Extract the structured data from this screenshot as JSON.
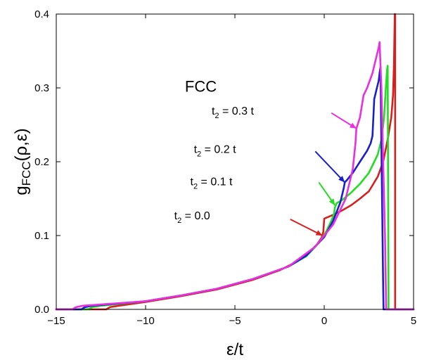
{
  "chart_data": {
    "type": "line",
    "title": "",
    "panel_label": "FCC",
    "xlabel": "ε/t",
    "ylabel": {
      "main": "g",
      "sub": "FCC",
      "args": "(ρ,ε)"
    },
    "xlim": [
      -15,
      5
    ],
    "ylim": [
      0,
      0.4
    ],
    "xticks": [
      -15,
      -10,
      -5,
      0,
      5
    ],
    "yticks": [
      0.0,
      0.1,
      0.2,
      0.3,
      0.4
    ],
    "xtick_labels": [
      "−15",
      "−10",
      "−5",
      "0",
      "5"
    ],
    "ytick_labels": [
      "0.0",
      "0.1",
      "0.2",
      "0.3",
      "0.4"
    ],
    "grid": false,
    "legend": "inline-annotations",
    "series": [
      {
        "name": "t2 = 0.0",
        "color": "#d62020",
        "x": [
          -15,
          -12.2,
          -12.0,
          -11.5,
          -10,
          -8,
          -6,
          -4,
          -2.5,
          -1.5,
          -0.8,
          -0.4,
          -0.15,
          -0.05,
          0.0,
          0.5,
          1.0,
          1.5,
          2.0,
          2.5,
          3.0,
          3.3,
          3.55,
          3.75,
          3.85,
          3.9,
          3.93,
          3.95,
          3.97,
          3.97,
          5
        ],
        "y": [
          0,
          0,
          0.003,
          0.005,
          0.01,
          0.018,
          0.027,
          0.04,
          0.053,
          0.065,
          0.078,
          0.088,
          0.097,
          0.105,
          0.123,
          0.128,
          0.134,
          0.141,
          0.15,
          0.16,
          0.18,
          0.2,
          0.23,
          0.26,
          0.29,
          0.33,
          0.37,
          0.4,
          0.4,
          0,
          0
        ]
      },
      {
        "name": "t2 = 0.1 t",
        "color": "#22dd22",
        "x": [
          -15,
          -13.2,
          -13.0,
          -12.5,
          -10,
          -8,
          -6,
          -4,
          -2,
          -1,
          -0.3,
          0.1,
          0.4,
          0.55,
          0.6,
          0.7,
          1.0,
          1.5,
          2.0,
          2.5,
          3.0,
          3.2,
          3.35,
          3.45,
          3.52,
          3.55,
          3.58,
          3.6,
          5
        ],
        "y": [
          0,
          0,
          0.003,
          0.005,
          0.011,
          0.019,
          0.028,
          0.041,
          0.058,
          0.072,
          0.09,
          0.105,
          0.12,
          0.13,
          0.138,
          0.144,
          0.148,
          0.158,
          0.17,
          0.185,
          0.21,
          0.23,
          0.26,
          0.3,
          0.325,
          0.33,
          0.15,
          0,
          0
        ]
      },
      {
        "name": "t2 = 0.2 t",
        "color": "#1820c8",
        "x": [
          -15,
          -13.6,
          -13.4,
          -13.0,
          -10,
          -8,
          -6,
          -4,
          -2,
          -1,
          0,
          0.5,
          0.9,
          1.1,
          1.15,
          1.3,
          1.6,
          2.0,
          2.4,
          2.6,
          2.7,
          2.8,
          2.95,
          3.05,
          3.1,
          3.15,
          3.2,
          3.3,
          3.32,
          5
        ],
        "y": [
          0,
          0,
          0.003,
          0.005,
          0.011,
          0.019,
          0.028,
          0.041,
          0.058,
          0.073,
          0.098,
          0.12,
          0.145,
          0.165,
          0.172,
          0.176,
          0.185,
          0.2,
          0.215,
          0.225,
          0.235,
          0.285,
          0.3,
          0.31,
          0.32,
          0.328,
          0.22,
          0.03,
          0,
          0
        ]
      },
      {
        "name": "t2 = 0.3 t",
        "color": "#e830e0",
        "x": [
          -15,
          -14.1,
          -13.9,
          -13.5,
          -10,
          -8,
          -6,
          -4,
          -2,
          -0.5,
          0.5,
          1.2,
          1.6,
          1.75,
          1.8,
          2.0,
          2.2,
          2.4,
          2.7,
          2.95,
          3.05,
          3.1,
          3.2,
          3.3,
          3.4,
          3.45,
          3.47,
          5
        ],
        "y": [
          0,
          0,
          0.003,
          0.005,
          0.011,
          0.019,
          0.028,
          0.041,
          0.058,
          0.085,
          0.115,
          0.15,
          0.19,
          0.225,
          0.245,
          0.26,
          0.29,
          0.3,
          0.32,
          0.345,
          0.355,
          0.362,
          0.3,
          0.2,
          0.1,
          0.03,
          0,
          0
        ]
      }
    ],
    "annotations": [
      {
        "base": "t",
        "sub": "2",
        "rest": " = 0.0",
        "color": "#d62020",
        "text_x": -8.4,
        "text_y": 0.122,
        "arrow_from": [
          -1.9,
          0.122
        ],
        "arrow_to": [
          -0.1,
          0.1
        ]
      },
      {
        "base": "t",
        "sub": "2",
        "rest": " = 0.1 t",
        "color": "#22dd22",
        "text_x": -7.5,
        "text_y": 0.168,
        "arrow_from": [
          -0.3,
          0.172
        ],
        "arrow_to": [
          0.6,
          0.141
        ]
      },
      {
        "base": "t",
        "sub": "2",
        "rest": " = 0.2 t",
        "color": "#1820c8",
        "text_x": -7.3,
        "text_y": 0.212,
        "arrow_from": [
          -0.5,
          0.214
        ],
        "arrow_to": [
          1.15,
          0.172
        ]
      },
      {
        "base": "t",
        "sub": "2",
        "rest": " = 0.3 t",
        "color": "#e830e0",
        "text_x": -6.3,
        "text_y": 0.264,
        "arrow_from": [
          0.4,
          0.266
        ],
        "arrow_to": [
          1.8,
          0.245
        ]
      }
    ]
  }
}
